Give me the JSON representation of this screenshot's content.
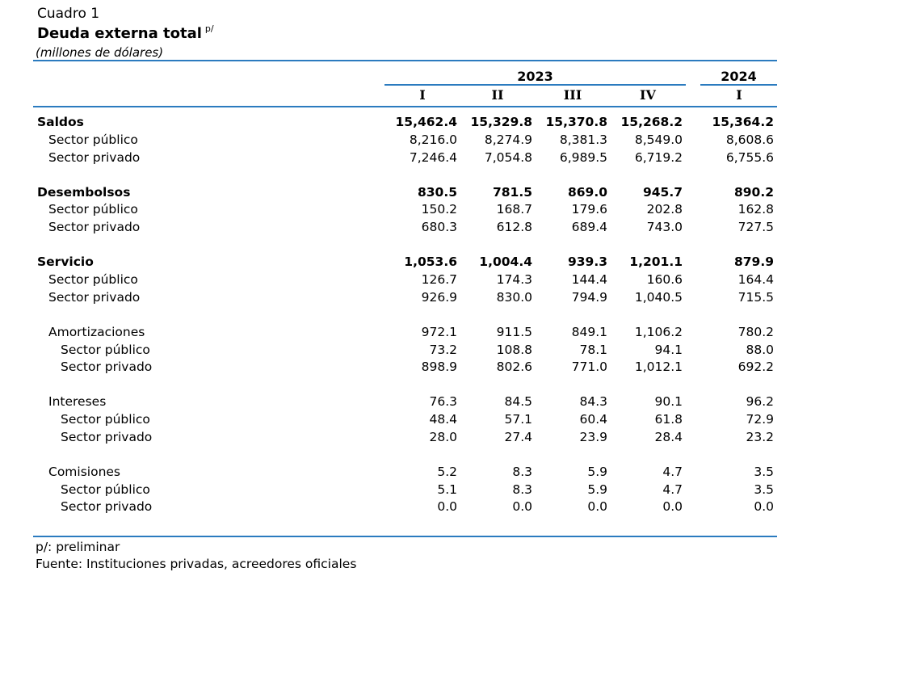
{
  "caption": {
    "number": "Cuadro 1",
    "title": "Deuda externa total",
    "title_superscript": "p/",
    "units": "(millones de dólares)"
  },
  "header": {
    "years": [
      "2023",
      "2024"
    ],
    "quarters_2023": [
      "I",
      "II",
      "III",
      "IV"
    ],
    "quarters_2024": [
      "I"
    ]
  },
  "rows": [
    {
      "label": "Saldos",
      "indent": 0,
      "bold": true,
      "values": [
        "15,462.4",
        "15,329.8",
        "15,370.8",
        "15,268.2",
        "15,364.2"
      ]
    },
    {
      "label": "Sector público",
      "indent": 1,
      "bold": false,
      "values": [
        "8,216.0",
        "8,274.9",
        "8,381.3",
        "8,549.0",
        "8,608.6"
      ]
    },
    {
      "label": "Sector privado",
      "indent": 1,
      "bold": false,
      "values": [
        "7,246.4",
        "7,054.8",
        "6,989.5",
        "6,719.2",
        "6,755.6"
      ]
    },
    {
      "label": "Desembolsos",
      "indent": 0,
      "bold": true,
      "values": [
        "830.5",
        "781.5",
        "869.0",
        "945.7",
        "890.2"
      ]
    },
    {
      "label": "Sector público",
      "indent": 1,
      "bold": false,
      "values": [
        "150.2",
        "168.7",
        "179.6",
        "202.8",
        "162.8"
      ]
    },
    {
      "label": "Sector privado",
      "indent": 1,
      "bold": false,
      "values": [
        "680.3",
        "612.8",
        "689.4",
        "743.0",
        "727.5"
      ]
    },
    {
      "label": "Servicio",
      "indent": 0,
      "bold": true,
      "values": [
        "1,053.6",
        "1,004.4",
        "939.3",
        "1,201.1",
        "879.9"
      ]
    },
    {
      "label": "Sector público",
      "indent": 1,
      "bold": false,
      "values": [
        "126.7",
        "174.3",
        "144.4",
        "160.6",
        "164.4"
      ]
    },
    {
      "label": "Sector privado",
      "indent": 1,
      "bold": false,
      "values": [
        "926.9",
        "830.0",
        "794.9",
        "1,040.5",
        "715.5"
      ]
    },
    {
      "label": "Amortizaciones",
      "indent": 1,
      "bold": false,
      "values": [
        "972.1",
        "911.5",
        "849.1",
        "1,106.2",
        "780.2"
      ]
    },
    {
      "label": "Sector público",
      "indent": 2,
      "bold": false,
      "values": [
        "73.2",
        "108.8",
        "78.1",
        "94.1",
        "88.0"
      ]
    },
    {
      "label": "Sector privado",
      "indent": 2,
      "bold": false,
      "values": [
        "898.9",
        "802.6",
        "771.0",
        "1,012.1",
        "692.2"
      ]
    },
    {
      "label": "Intereses",
      "indent": 1,
      "bold": false,
      "values": [
        "76.3",
        "84.5",
        "84.3",
        "90.1",
        "96.2"
      ]
    },
    {
      "label": "Sector público",
      "indent": 2,
      "bold": false,
      "values": [
        "48.4",
        "57.1",
        "60.4",
        "61.8",
        "72.9"
      ]
    },
    {
      "label": "Sector privado",
      "indent": 2,
      "bold": false,
      "values": [
        "28.0",
        "27.4",
        "23.9",
        "28.4",
        "23.2"
      ]
    },
    {
      "label": "Comisiones",
      "indent": 1,
      "bold": false,
      "values": [
        "5.2",
        "8.3",
        "5.9",
        "4.7",
        "3.5"
      ]
    },
    {
      "label": "Sector público",
      "indent": 2,
      "bold": false,
      "values": [
        "5.1",
        "8.3",
        "5.9",
        "4.7",
        "3.5"
      ]
    },
    {
      "label": "Sector privado",
      "indent": 2,
      "bold": false,
      "values": [
        "0.0",
        "0.0",
        "0.0",
        "0.0",
        "0.0"
      ]
    }
  ],
  "notes": {
    "preliminary": "p/: preliminar",
    "source": "Fuente: Instituciones privadas, acreedores oficiales"
  },
  "colors": {
    "rule": "#2b7bbf"
  }
}
